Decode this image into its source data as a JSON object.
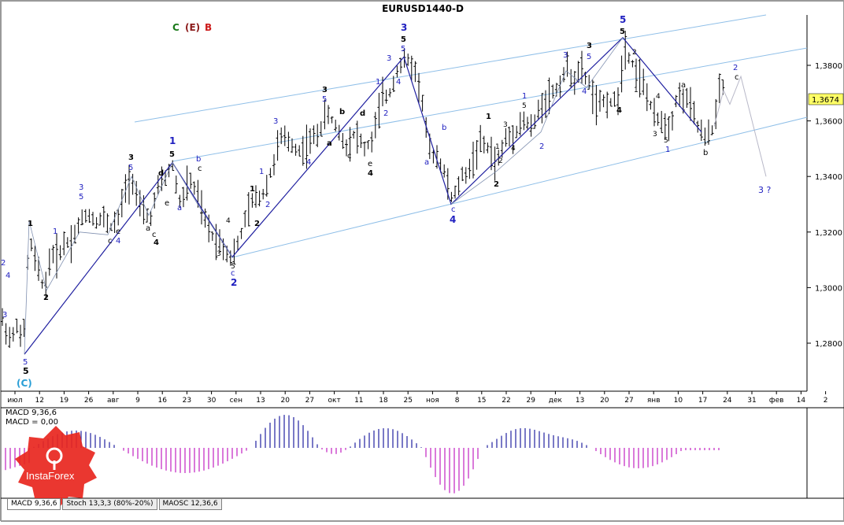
{
  "title": "EURUSD1440-D",
  "legend_top": {
    "c": "C",
    "e": "(E)",
    "b": "B"
  },
  "price_label": "1,3674",
  "price_label_value": 1.3674,
  "chart_data": [
    {
      "type": "candlestick",
      "title": "EURUSD1440-D",
      "x_ticks": [
        "июл",
        "12",
        "19",
        "26",
        "авг",
        "9",
        "16",
        "23",
        "30",
        "сен",
        "13",
        "20",
        "27",
        "окт",
        "11",
        "18",
        "25",
        "ноя",
        "8",
        "15",
        "22",
        "29",
        "дек",
        "13",
        "20",
        "27",
        "янв",
        "10",
        "17",
        "24",
        "31",
        "фев",
        "14",
        "2"
      ],
      "y_ticks": [
        "1,3800",
        "1,3600",
        "1,3400",
        "1,3200",
        "1,3000",
        "1,2800"
      ],
      "y_tick_values": [
        1.38,
        1.36,
        1.34,
        1.32,
        1.3,
        1.28
      ],
      "ylim": [
        1.264,
        1.401
      ],
      "current_price": 1.3674,
      "wave_path": [
        {
          "x": "2",
          "y": 1.276
        },
        {
          "x": "4",
          "y": 1.325
        },
        {
          "x": "6",
          "y": 1.299
        },
        {
          "x": "8",
          "y": 1.329
        },
        {
          "x": "9",
          "y": 1.318
        },
        {
          "x": "16",
          "y": 1.345
        },
        {
          "x": "24",
          "y": 1.326
        },
        {
          "x": "30",
          "y": 1.312
        },
        {
          "x": "25oct",
          "y": 1.383
        },
        {
          "x": "8nov",
          "y": 1.33
        },
        {
          "x": "27dec",
          "y": 1.39
        },
        {
          "x": "17jan",
          "y": 1.354
        },
        {
          "x": "24jan",
          "y": 1.376
        },
        {
          "x": "fc",
          "y": 1.34
        }
      ],
      "wave_labels": [
        {
          "text": "(C)",
          "color": "#2a9fd6"
        },
        {
          "text": "1",
          "color": "#2020c0"
        },
        {
          "text": "2",
          "color": "#2020c0"
        },
        {
          "text": "3",
          "color": "#2020c0"
        },
        {
          "text": "4",
          "color": "#2020c0"
        },
        {
          "text": "5",
          "color": "#2020c0"
        },
        {
          "text": "3 ?",
          "color": "#2020c0"
        }
      ]
    },
    {
      "type": "bar",
      "title": "MACD 9,36,6",
      "subtitle": "MACD = 0,00"
    }
  ],
  "tabs": [
    {
      "label": "MACD 9,36,6",
      "active": true
    },
    {
      "label": "Stoch 13,3,3 (80%-20%)",
      "active": false
    },
    {
      "label": "MAOSC 12,36,6",
      "active": false
    }
  ],
  "logo_text": "InstaForex",
  "colors": {
    "line": "#2020a0",
    "channel": "#8fbfe8",
    "macd_up": "#2020a0",
    "macd_down": "#c020c0",
    "grid_text": "#000000"
  }
}
